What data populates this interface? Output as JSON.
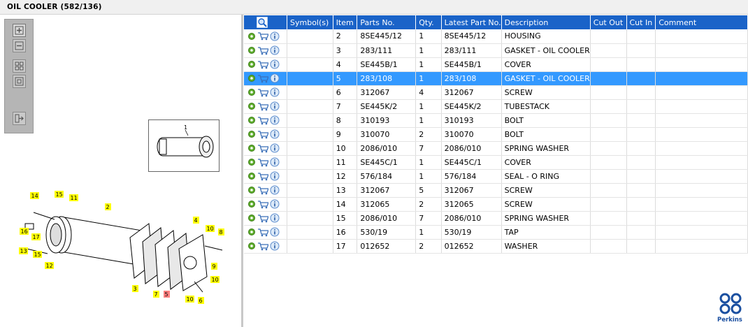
{
  "title": "OIL COOLER (582/136)",
  "toolbox": {
    "buttons": [
      "zoom-in",
      "zoom-out",
      "fit-all",
      "fit-window",
      "export"
    ]
  },
  "thumbnail": {
    "callout": "1"
  },
  "diagram": {
    "callouts": [
      "14",
      "15",
      "11",
      "2",
      "16",
      "17",
      "13",
      "15",
      "12",
      "4",
      "10",
      "8",
      "9",
      "10",
      "3",
      "7",
      "5",
      "10",
      "6"
    ],
    "highlighted_callout": "5"
  },
  "grid": {
    "columns": [
      "Symbol(s)",
      "Item",
      "Parts No.",
      "Qty.",
      "Latest Part No.",
      "Description",
      "Cut Out",
      "Cut In",
      "Comment"
    ],
    "rows": [
      {
        "item": "2",
        "part": "8SE445/12",
        "qty": "1",
        "latest": "8SE445/12",
        "desc": "HOUSING"
      },
      {
        "item": "3",
        "part": "283/111",
        "qty": "1",
        "latest": "283/111",
        "desc": "GASKET - OIL COOLER"
      },
      {
        "item": "4",
        "part": "SE445B/1",
        "qty": "1",
        "latest": "SE445B/1",
        "desc": "COVER"
      },
      {
        "item": "5",
        "part": "283/108",
        "qty": "1",
        "latest": "283/108",
        "desc": "GASKET - OIL COOLER"
      },
      {
        "item": "6",
        "part": "312067",
        "qty": "4",
        "latest": "312067",
        "desc": "SCREW"
      },
      {
        "item": "7",
        "part": "SE445K/2",
        "qty": "1",
        "latest": "SE445K/2",
        "desc": "TUBESTACK"
      },
      {
        "item": "8",
        "part": "310193",
        "qty": "1",
        "latest": "310193",
        "desc": "BOLT"
      },
      {
        "item": "9",
        "part": "310070",
        "qty": "2",
        "latest": "310070",
        "desc": "BOLT"
      },
      {
        "item": "10",
        "part": "2086/010",
        "qty": "7",
        "latest": "2086/010",
        "desc": "SPRING WASHER"
      },
      {
        "item": "11",
        "part": "SE445C/1",
        "qty": "1",
        "latest": "SE445C/1",
        "desc": "COVER"
      },
      {
        "item": "12",
        "part": "576/184",
        "qty": "1",
        "latest": "576/184",
        "desc": "SEAL - O RING"
      },
      {
        "item": "13",
        "part": "312067",
        "qty": "5",
        "latest": "312067",
        "desc": "SCREW"
      },
      {
        "item": "14",
        "part": "312065",
        "qty": "2",
        "latest": "312065",
        "desc": "SCREW"
      },
      {
        "item": "15",
        "part": "2086/010",
        "qty": "7",
        "latest": "2086/010",
        "desc": "SPRING WASHER"
      },
      {
        "item": "16",
        "part": "530/19",
        "qty": "1",
        "latest": "530/19",
        "desc": "TAP"
      },
      {
        "item": "17",
        "part": "012652",
        "qty": "2",
        "latest": "012652",
        "desc": "WASHER"
      }
    ],
    "selected_item": "5"
  },
  "brand": {
    "name": "Perkins"
  },
  "colors": {
    "header": "#1a63c8",
    "selected": "#3399ff",
    "callout": "#ffff00",
    "callout_highlight": "#ff8080"
  },
  "icons": [
    "gear-icon",
    "cart-icon",
    "info-icon",
    "search-icon"
  ]
}
